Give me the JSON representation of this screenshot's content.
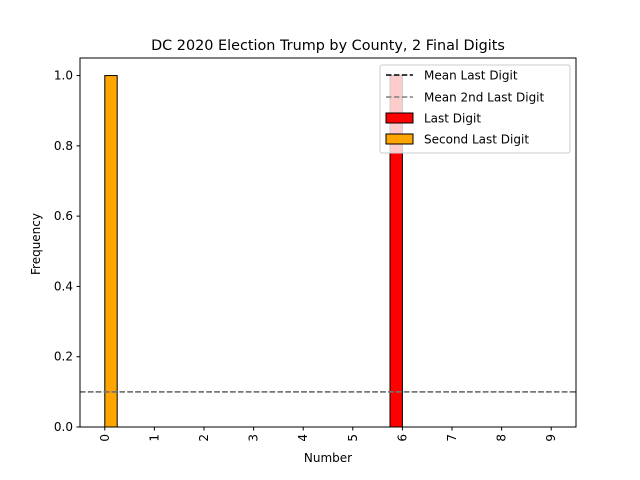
{
  "chart_data": {
    "type": "bar",
    "title": "DC 2020 Election Trump by County, 2 Final Digits",
    "xlabel": "Number",
    "ylabel": "Frequency",
    "categories": [
      "0",
      "1",
      "2",
      "3",
      "4",
      "5",
      "6",
      "7",
      "8",
      "9"
    ],
    "ylim": [
      0,
      1.05
    ],
    "yticks": [
      "0.0",
      "0.2",
      "0.4",
      "0.6",
      "0.8",
      "1.0"
    ],
    "series": [
      {
        "name": "Last Digit",
        "color": "#ff0000",
        "values": [
          0,
          0,
          0,
          0,
          0,
          0,
          1.0,
          0,
          0,
          0
        ]
      },
      {
        "name": "Second Last Digit",
        "color": "#ffa500",
        "values": [
          1.0,
          0,
          0,
          0,
          0,
          0,
          0,
          0,
          0,
          0
        ]
      }
    ],
    "reference_lines": [
      {
        "name": "Mean Last Digit",
        "value": 0.1,
        "color": "#000000",
        "style": "dashed"
      },
      {
        "name": "Mean 2nd Last Digit",
        "value": 0.1,
        "color": "#808080",
        "style": "dashed"
      }
    ],
    "legend": {
      "placement": "top-right",
      "entries": [
        "Mean Last Digit",
        "Mean 2nd Last Digit",
        "Last Digit",
        "Second Last Digit"
      ]
    },
    "grid": false
  }
}
